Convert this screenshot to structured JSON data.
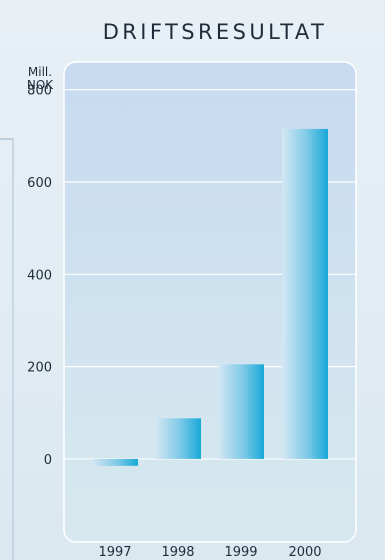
{
  "chart_data": {
    "type": "bar",
    "title": "DRIFTSRESULTAT",
    "ylabel": "Mill. NOK",
    "unit_lines": [
      "Mill.",
      "NOK"
    ],
    "categories": [
      "1997",
      "1998",
      "1999",
      "2000"
    ],
    "values": [
      -15,
      88,
      205,
      715
    ],
    "ylim": [
      -180,
      860
    ],
    "yticks": [
      0,
      200,
      400,
      600,
      800
    ],
    "grid": true,
    "legend": "none",
    "colors": {
      "bar_light": "#d6e7f3",
      "bar_dark": "#18a9d8",
      "plot_bg_top": "#c7daf0",
      "plot_bg_bottom": "#d7e9ee"
    }
  }
}
